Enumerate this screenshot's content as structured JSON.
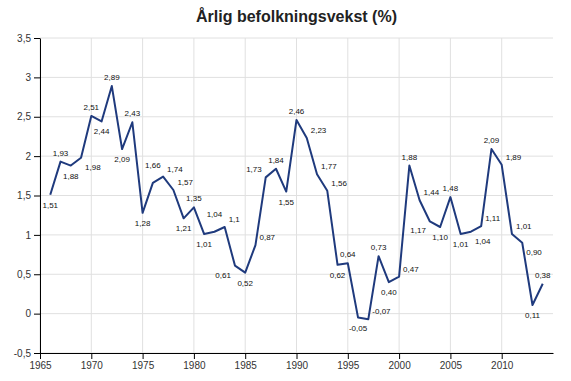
{
  "chart_data": {
    "type": "line",
    "title": "Årlig befolkningsvekst (%)",
    "x": [
      1966,
      1967,
      1968,
      1969,
      1970,
      1971,
      1972,
      1973,
      1974,
      1975,
      1976,
      1977,
      1978,
      1979,
      1980,
      1981,
      1982,
      1983,
      1984,
      1985,
      1986,
      1987,
      1988,
      1989,
      1990,
      1991,
      1992,
      1993,
      1994,
      1995,
      1996,
      1997,
      1998,
      1999,
      2000,
      2001,
      2002,
      2003,
      2004,
      2005,
      2006,
      2007,
      2008,
      2009,
      2010,
      2011,
      2012,
      2013,
      2014
    ],
    "values": [
      1.51,
      1.93,
      1.88,
      1.98,
      2.51,
      2.44,
      2.89,
      2.09,
      2.43,
      1.28,
      1.66,
      1.74,
      1.57,
      1.21,
      1.35,
      1.01,
      1.04,
      1.1,
      0.61,
      0.52,
      0.87,
      1.73,
      1.84,
      1.55,
      2.46,
      2.23,
      1.77,
      1.56,
      0.62,
      0.64,
      -0.05,
      -0.07,
      0.73,
      0.4,
      0.47,
      1.88,
      1.44,
      1.17,
      1.1,
      1.48,
      1.01,
      1.04,
      1.11,
      2.09,
      1.89,
      1.01,
      0.9,
      0.11,
      0.38
    ],
    "value_labels": [
      "1,51",
      "1,93",
      "1,88",
      "1,98",
      "2,51",
      "2,44",
      "2,89",
      "2,09",
      "2,43",
      "1,28",
      "1,66",
      "1,74",
      "1,57",
      "1,21",
      "1,35",
      "1,01",
      "1,04",
      "1,1",
      "0,61",
      "0,52",
      "0,87",
      "1,73",
      "1,84",
      "1,55",
      "2,46",
      "2,23",
      "1,77",
      "1,56",
      "0,62",
      "0,64",
      "-0,05",
      "-0,07",
      "0,73",
      "0,40",
      "0,47",
      "1,88",
      "1,44",
      "1,17",
      "1,10",
      "1,48",
      "1,01",
      "1,04",
      "1,11",
      "2,09",
      "1,89",
      "1,01",
      "0,90",
      "0,11",
      "0,38"
    ],
    "color": "#1F3A7D",
    "xlim": [
      1965,
      2015
    ],
    "xticks": [
      1965,
      1970,
      1975,
      1980,
      1985,
      1990,
      1995,
      2000,
      2005,
      2010
    ],
    "ylim": [
      -0.5,
      3.5
    ],
    "yticks": [
      {
        "value": -0.5,
        "label": "-0,5"
      },
      0,
      {
        "value": 0.5,
        "label": "0,5"
      },
      1,
      {
        "value": 1.5,
        "label": "1,5"
      },
      2,
      {
        "value": 2.5,
        "label": "2,5"
      },
      3,
      {
        "value": 3.5,
        "label": "3,5"
      }
    ],
    "grid": true,
    "data_labels": true
  }
}
